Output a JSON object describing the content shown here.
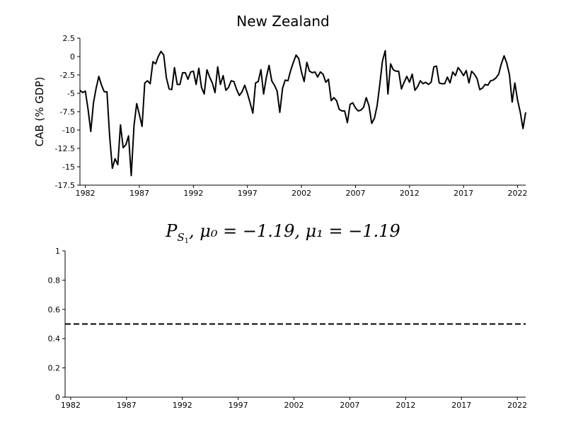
{
  "chart_data": [
    {
      "type": "line",
      "title": "New Zealand",
      "xlabel": "",
      "ylabel": "CAB (% GDP)",
      "xlim": [
        1981.5,
        2022.75
      ],
      "ylim": [
        -17.5,
        2.5
      ],
      "x_ticks": [
        1982,
        1987,
        1992,
        1997,
        2002,
        2007,
        2012,
        2017,
        2022
      ],
      "y_ticks": [
        2.5,
        0,
        -2.5,
        -5,
        -7.5,
        -10,
        -12.5,
        -15,
        -17.5
      ],
      "y_tick_labels": [
        "2.5",
        "0",
        "-2.5",
        "-5",
        "-7.5",
        "-10",
        "-12.5",
        "-15",
        "-17.5"
      ],
      "grid": false,
      "series": [
        {
          "style": "solid",
          "color": "#000000",
          "x": [
            1981.5,
            1981.75,
            1982,
            1982.25,
            1982.5,
            1982.75,
            1983,
            1983.25,
            1983.5,
            1983.75,
            1984,
            1984.25,
            1984.5,
            1984.75,
            1985,
            1985.25,
            1985.5,
            1985.75,
            1986,
            1986.25,
            1986.5,
            1986.75,
            1987,
            1987.25,
            1987.5,
            1987.75,
            1988,
            1988.25,
            1988.5,
            1988.75,
            1989,
            1989.25,
            1989.5,
            1989.75,
            1990,
            1990.25,
            1990.5,
            1990.75,
            1991,
            1991.25,
            1991.5,
            1991.75,
            1992,
            1992.25,
            1992.5,
            1992.75,
            1993,
            1993.25,
            1993.5,
            1993.75,
            1994,
            1994.25,
            1994.5,
            1994.75,
            1995,
            1995.25,
            1995.5,
            1995.75,
            1996,
            1996.25,
            1996.5,
            1996.75,
            1997,
            1997.25,
            1997.5,
            1997.75,
            1998,
            1998.25,
            1998.5,
            1998.75,
            1999,
            1999.25,
            1999.5,
            1999.75,
            2000,
            2000.25,
            2000.5,
            2000.75,
            2001,
            2001.25,
            2001.5,
            2001.75,
            2002,
            2002.25,
            2002.5,
            2002.75,
            2003,
            2003.25,
            2003.5,
            2003.75,
            2004,
            2004.25,
            2004.5,
            2004.75,
            2005,
            2005.25,
            2005.5,
            2005.75,
            2006,
            2006.25,
            2006.5,
            2006.75,
            2007,
            2007.25,
            2007.5,
            2007.75,
            2008,
            2008.25,
            2008.5,
            2008.75,
            2009,
            2009.25,
            2009.5,
            2009.75,
            2010,
            2010.25,
            2010.5,
            2010.75,
            2011,
            2011.25,
            2011.5,
            2011.75,
            2012,
            2012.25,
            2012.5,
            2012.75,
            2013,
            2013.25,
            2013.5,
            2013.75,
            2014,
            2014.25,
            2014.5,
            2014.75,
            2015,
            2015.25,
            2015.5,
            2015.75,
            2016,
            2016.25,
            2016.5,
            2016.75,
            2017,
            2017.25,
            2017.5,
            2017.75,
            2018,
            2018.25,
            2018.5,
            2018.75,
            2019,
            2019.25,
            2019.5,
            2019.75,
            2020,
            2020.25,
            2020.5,
            2020.75,
            2021,
            2021.25,
            2021.5,
            2021.75,
            2022,
            2022.25,
            2022.5,
            2022.75
          ],
          "values": [
            -4.6,
            -4.9,
            -4.7,
            -7.2,
            -10.2,
            -6.3,
            -4.3,
            -2.7,
            -3.9,
            -4.8,
            -4.8,
            -10.9,
            -15.2,
            -13.9,
            -14.7,
            -9.3,
            -12.4,
            -12.0,
            -10.8,
            -16.2,
            -9.4,
            -6.4,
            -7.9,
            -9.5,
            -3.6,
            -3.3,
            -3.7,
            -0.7,
            -1.0,
            0.0,
            0.7,
            0.2,
            -2.9,
            -4.4,
            -4.5,
            -1.5,
            -3.8,
            -3.8,
            -2.2,
            -2.2,
            -3.1,
            -2.1,
            -2.0,
            -3.8,
            -1.6,
            -4.2,
            -5.1,
            -1.8,
            -2.8,
            -3.6,
            -4.9,
            -1.4,
            -3.8,
            -2.6,
            -4.6,
            -4.2,
            -3.3,
            -3.4,
            -4.5,
            -5.3,
            -4.8,
            -3.9,
            -5.0,
            -6.3,
            -7.7,
            -3.6,
            -3.4,
            -1.8,
            -5.1,
            -2.8,
            -1.2,
            -3.3,
            -3.9,
            -4.7,
            -7.6,
            -4.3,
            -3.2,
            -3.3,
            -1.9,
            -0.8,
            0.2,
            -0.3,
            -2.1,
            -3.4,
            -0.8,
            -2.0,
            -2.2,
            -2.1,
            -2.8,
            -2.1,
            -2.4,
            -3.5,
            -3.1,
            -6.0,
            -5.6,
            -6.0,
            -7.2,
            -7.4,
            -7.4,
            -9.0,
            -6.5,
            -6.3,
            -7.0,
            -7.4,
            -7.3,
            -6.9,
            -5.6,
            -6.7,
            -9.1,
            -8.4,
            -6.7,
            -3.8,
            -0.6,
            0.8,
            -5.1,
            -1.0,
            -1.8,
            -2.0,
            -2.0,
            -4.4,
            -3.5,
            -2.7,
            -3.5,
            -2.4,
            -4.6,
            -4.1,
            -3.3,
            -3.7,
            -3.5,
            -3.8,
            -3.5,
            -1.4,
            -1.3,
            -3.6,
            -3.7,
            -3.7,
            -2.8,
            -3.6,
            -2.1,
            -2.6,
            -1.5,
            -2.0,
            -2.6,
            -1.9,
            -3.6,
            -2.0,
            -2.4,
            -3.0,
            -4.5,
            -4.3,
            -3.8,
            -3.9,
            -3.3,
            -3.2,
            -2.9,
            -2.4,
            -1.0,
            0.1,
            -0.9,
            -2.5,
            -6.2,
            -3.6,
            -5.9,
            -7.6,
            -9.8,
            -7.6
          ]
        }
      ]
    },
    {
      "type": "line",
      "title": "P_{S_1}, μ_0 = −1.19, μ_1 = −1.19",
      "title_parts": {
        "p": "P",
        "p_sub": "S",
        "p_subsub": "1",
        "rest": ", μ₀ = −1.19, μ₁ = −1.19"
      },
      "xlabel": "",
      "ylabel": "",
      "xlim": [
        1981.5,
        2022.75
      ],
      "ylim": [
        0,
        1
      ],
      "x_ticks": [
        1982,
        1987,
        1992,
        1997,
        2002,
        2007,
        2012,
        2017,
        2022
      ],
      "y_ticks": [
        0,
        0.2,
        0.4,
        0.6,
        0.8,
        1
      ],
      "y_tick_labels": [
        "0",
        "0.2",
        "0.4",
        "0.6",
        "0.8",
        "1"
      ],
      "grid": false,
      "series": [
        {
          "style": "dashed",
          "color": "#000000",
          "x": [
            1981.5,
            2022.75
          ],
          "values": [
            0.5,
            0.5
          ]
        }
      ]
    }
  ]
}
